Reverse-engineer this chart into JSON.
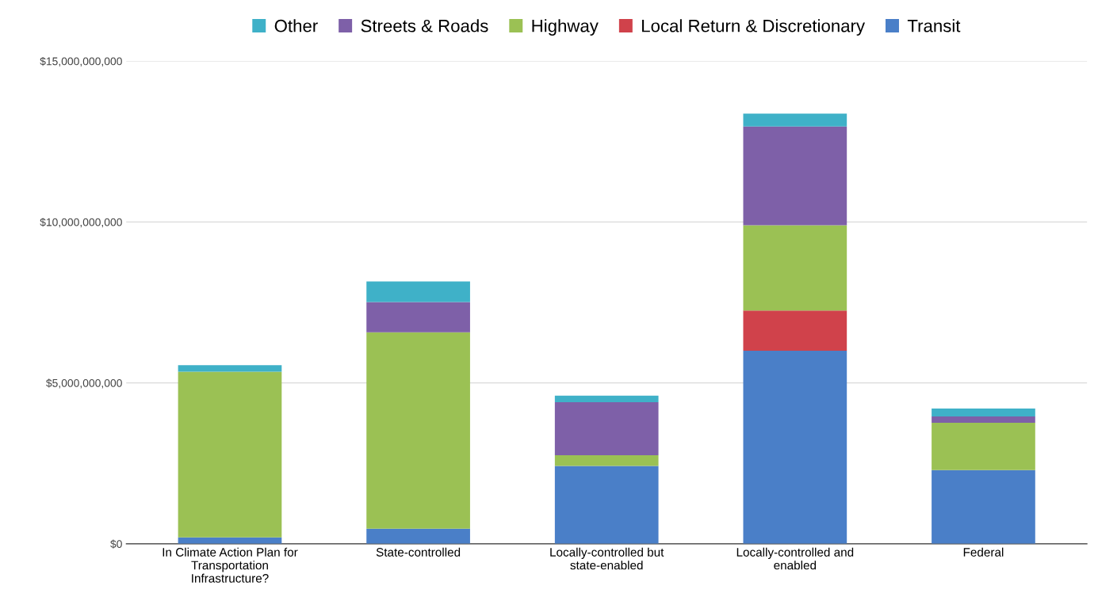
{
  "chart_data": {
    "type": "bar",
    "stacked": true,
    "categories": [
      "In Climate Action Plan for\nTransportation\nInfrastructure?",
      "State-controlled",
      "Locally-controlled but\nstate-enabled",
      "Locally-controlled and\nenabled",
      "Federal"
    ],
    "series": [
      {
        "name": "Transit",
        "color": "#4a7fc8",
        "values": [
          200000000,
          470000000,
          2420000000,
          6000000000,
          2290000000
        ]
      },
      {
        "name": "Local Return & Discretionary",
        "color": "#d0424b",
        "values": [
          0,
          0,
          0,
          1250000000,
          0
        ]
      },
      {
        "name": "Highway",
        "color": "#9bc154",
        "values": [
          5150000000,
          6100000000,
          330000000,
          2650000000,
          1470000000
        ]
      },
      {
        "name": "Streets & Roads",
        "color": "#7e60a8",
        "values": [
          0,
          940000000,
          1650000000,
          3070000000,
          200000000
        ]
      },
      {
        "name": "Other",
        "color": "#3fb1c8",
        "values": [
          200000000,
          640000000,
          200000000,
          400000000,
          240000000
        ]
      }
    ],
    "ylim": [
      0,
      15000000000
    ],
    "yticks": [
      {
        "value": 0,
        "label": "$0"
      },
      {
        "value": 5000000000,
        "label": "$5,000,000,000"
      },
      {
        "value": 10000000000,
        "label": "$10,000,000,000"
      },
      {
        "value": 15000000000,
        "label": "$15,000,000,000"
      }
    ],
    "grid": "y",
    "legend": "top"
  }
}
